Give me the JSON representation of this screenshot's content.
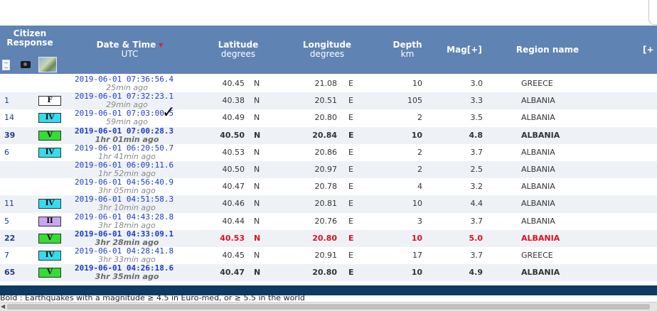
{
  "header": {
    "citizen_response": "Citizen Response",
    "date_time": "Date & Time",
    "date_time_sub": "UTC",
    "latitude": "Latitude",
    "latitude_sub": "degrees",
    "longitude": "Longitude",
    "longitude_sub": "degrees",
    "depth": "Depth",
    "depth_sub": "km",
    "mag": "Mag[+]",
    "region": "Region name",
    "more": "[+",
    "sort_icon": "triangle-down-icon",
    "icons": [
      "document-icon",
      "camera-icon",
      "map-icon"
    ]
  },
  "rows": [
    {
      "count": "",
      "intensity": "",
      "intensity_color": "",
      "datetime": "2019-06-01   07:36:56.4",
      "ago": "25min ago",
      "lat": "40.45",
      "ns": "N",
      "lon": "21.08",
      "ew": "E",
      "depth": "10",
      "mag": "3.0",
      "region": "GREECE",
      "style": "normal"
    },
    {
      "count": "1",
      "intensity": "F",
      "intensity_color": "#ffffff",
      "datetime": "2019-06-01   07:32:23.1",
      "ago": "29min ago",
      "lat": "40.38",
      "ns": "N",
      "lon": "20.51",
      "ew": "E",
      "depth": "105",
      "mag": "3.3",
      "region": "ALBANIA",
      "style": "normal"
    },
    {
      "count": "14",
      "intensity": "IV",
      "intensity_color": "#33ddee",
      "datetime": "2019-06-01   07:03:00.5",
      "ago": "59min ago",
      "lat": "40.49",
      "ns": "N",
      "lon": "20.80",
      "ew": "E",
      "depth": "2",
      "mag": "3.5",
      "region": "ALBANIA",
      "style": "normal"
    },
    {
      "count": "39",
      "intensity": "V",
      "intensity_color": "#33dd33",
      "datetime": "2019-06-01   07:00:28.3",
      "ago": "1hr 01min ago",
      "lat": "40.50",
      "ns": "N",
      "lon": "20.84",
      "ew": "E",
      "depth": "10",
      "mag": "4.8",
      "region": "ALBANIA",
      "style": "bold"
    },
    {
      "count": "6",
      "intensity": "IV",
      "intensity_color": "#33ddee",
      "datetime": "2019-06-01   06:20:50.7",
      "ago": "1hr 41min ago",
      "lat": "40.53",
      "ns": "N",
      "lon": "20.86",
      "ew": "E",
      "depth": "2",
      "mag": "3.7",
      "region": "ALBANIA",
      "style": "normal"
    },
    {
      "count": "",
      "intensity": "",
      "intensity_color": "",
      "datetime": "2019-06-01   06:09:11.6",
      "ago": "1hr 52min ago",
      "lat": "40.50",
      "ns": "N",
      "lon": "20.97",
      "ew": "E",
      "depth": "2",
      "mag": "2.5",
      "region": "ALBANIA",
      "style": "normal"
    },
    {
      "count": "",
      "intensity": "",
      "intensity_color": "",
      "datetime": "2019-06-01   04:56:40.9",
      "ago": "3hr 05min ago",
      "lat": "40.47",
      "ns": "N",
      "lon": "20.78",
      "ew": "E",
      "depth": "4",
      "mag": "3.2",
      "region": "ALBANIA",
      "style": "normal"
    },
    {
      "count": "11",
      "intensity": "IV",
      "intensity_color": "#33ddee",
      "datetime": "2019-06-01   04:51:58.3",
      "ago": "3hr 10min ago",
      "lat": "40.46",
      "ns": "N",
      "lon": "20.81",
      "ew": "E",
      "depth": "10",
      "mag": "4.4",
      "region": "ALBANIA",
      "style": "normal"
    },
    {
      "count": "5",
      "intensity": "II",
      "intensity_color": "#c9a6f2",
      "datetime": "2019-06-01   04:43:28.8",
      "ago": "3hr 18min ago",
      "lat": "40.44",
      "ns": "N",
      "lon": "20.76",
      "ew": "E",
      "depth": "3",
      "mag": "3.7",
      "region": "ALBANIA",
      "style": "normal"
    },
    {
      "count": "22",
      "intensity": "V",
      "intensity_color": "#33dd33",
      "datetime": "2019-06-01   04:33:09.1",
      "ago": "3hr 28min ago",
      "lat": "40.53",
      "ns": "N",
      "lon": "20.80",
      "ew": "E",
      "depth": "10",
      "mag": "5.0",
      "region": "ALBANIA",
      "style": "red"
    },
    {
      "count": "7",
      "intensity": "IV",
      "intensity_color": "#33ddee",
      "datetime": "2019-06-01   04:28:41.8",
      "ago": "3hr 33min ago",
      "lat": "40.45",
      "ns": "N",
      "lon": "20.91",
      "ew": "E",
      "depth": "17",
      "mag": "3.7",
      "region": "GREECE",
      "style": "normal"
    },
    {
      "count": "65",
      "intensity": "V",
      "intensity_color": "#33dd33",
      "datetime": "2019-06-01   04:26:18.6",
      "ago": "3hr 35min ago",
      "lat": "40.47",
      "ns": "N",
      "lon": "20.80",
      "ew": "E",
      "depth": "10",
      "mag": "4.9",
      "region": "ALBANIA",
      "style": "bold"
    }
  ],
  "legend_text": "Bold : Earthquakes with a magnitude ≥ 4.5 in Euro-med, or ≥ 5.5 in the world",
  "cursor_icon": "checkmark-cursor-icon",
  "colors": {
    "header_bg": "#5f83b3",
    "alt_row_bg": "#eef2f7",
    "datetime_blue": "#1a3cc8",
    "highlight_red": "#e0101a",
    "footer_bar": "#0f3a63"
  }
}
